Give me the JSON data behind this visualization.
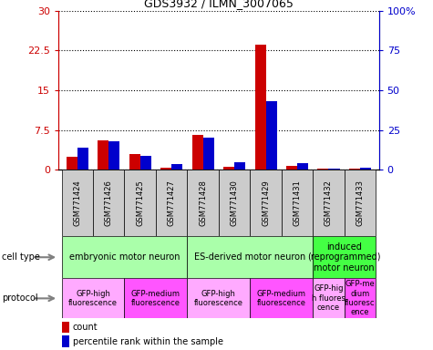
{
  "title": "GDS3932 / ILMN_3007065",
  "samples": [
    "GSM771424",
    "GSM771426",
    "GSM771425",
    "GSM771427",
    "GSM771428",
    "GSM771430",
    "GSM771429",
    "GSM771431",
    "GSM771432",
    "GSM771433"
  ],
  "count_values": [
    2.5,
    5.5,
    3.0,
    0.3,
    6.5,
    0.5,
    23.5,
    0.8,
    0.2,
    0.2
  ],
  "percentile_values": [
    14.0,
    18.0,
    9.0,
    3.5,
    20.0,
    4.5,
    43.0,
    4.0,
    0.5,
    1.5
  ],
  "left_ylim": [
    0,
    30
  ],
  "right_ylim": [
    0,
    100
  ],
  "left_yticks": [
    0,
    7.5,
    15,
    22.5,
    30
  ],
  "left_yticklabels": [
    "0",
    "7.5",
    "15",
    "22.5",
    "30"
  ],
  "right_yticks": [
    0,
    25,
    50,
    75,
    100
  ],
  "right_yticklabels": [
    "0",
    "25",
    "50",
    "75",
    "100%"
  ],
  "left_color": "#cc0000",
  "right_color": "#0000cc",
  "bar_width": 0.35,
  "cell_type_groups": [
    {
      "label": "embryonic motor neuron",
      "start": 0,
      "end": 3,
      "color": "#aaffaa"
    },
    {
      "label": "ES-derived motor neuron",
      "start": 4,
      "end": 7,
      "color": "#aaffaa"
    },
    {
      "label": "induced\n(reprogrammed)\nmotor neuron",
      "start": 8,
      "end": 9,
      "color": "#44ff44"
    }
  ],
  "protocol_groups": [
    {
      "label": "GFP-high\nfluorescence",
      "start": 0,
      "end": 1,
      "color": "#ffaaff"
    },
    {
      "label": "GFP-medium\nfluorescence",
      "start": 2,
      "end": 3,
      "color": "#ff55ff"
    },
    {
      "label": "GFP-high\nfluorescence",
      "start": 4,
      "end": 5,
      "color": "#ffaaff"
    },
    {
      "label": "GFP-medium\nfluorescence",
      "start": 6,
      "end": 7,
      "color": "#ff55ff"
    },
    {
      "label": "GFP-hig\nh fluores\ncence",
      "start": 8,
      "end": 8,
      "color": "#ffaaff"
    },
    {
      "label": "GFP-me\ndium\nfluoresc\nence",
      "start": 9,
      "end": 9,
      "color": "#ff55ff"
    }
  ],
  "legend_count_label": "count",
  "legend_pct_label": "percentile rank within the sample",
  "legend_count_color": "#cc0000",
  "legend_pct_color": "#0000cc",
  "grid_color": "black",
  "tick_bg_color": "#cccccc",
  "sample_name_fontsize": 6,
  "ct_fontsize": 7,
  "pr_fontsize": 6
}
